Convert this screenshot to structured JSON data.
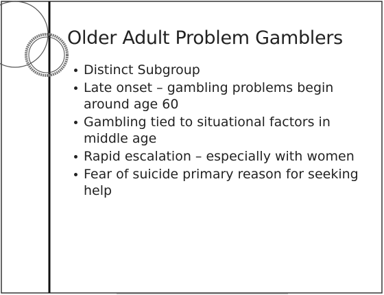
{
  "slide": {
    "title": "Older Adult Problem Gamblers",
    "bullets": [
      "Distinct Subgroup",
      "Late onset – gambling problems begin around age 60",
      "Gambling tied to situational factors in middle age",
      "Rapid escalation – especially with women",
      "Fear of suicide primary reason for seeking help"
    ]
  }
}
